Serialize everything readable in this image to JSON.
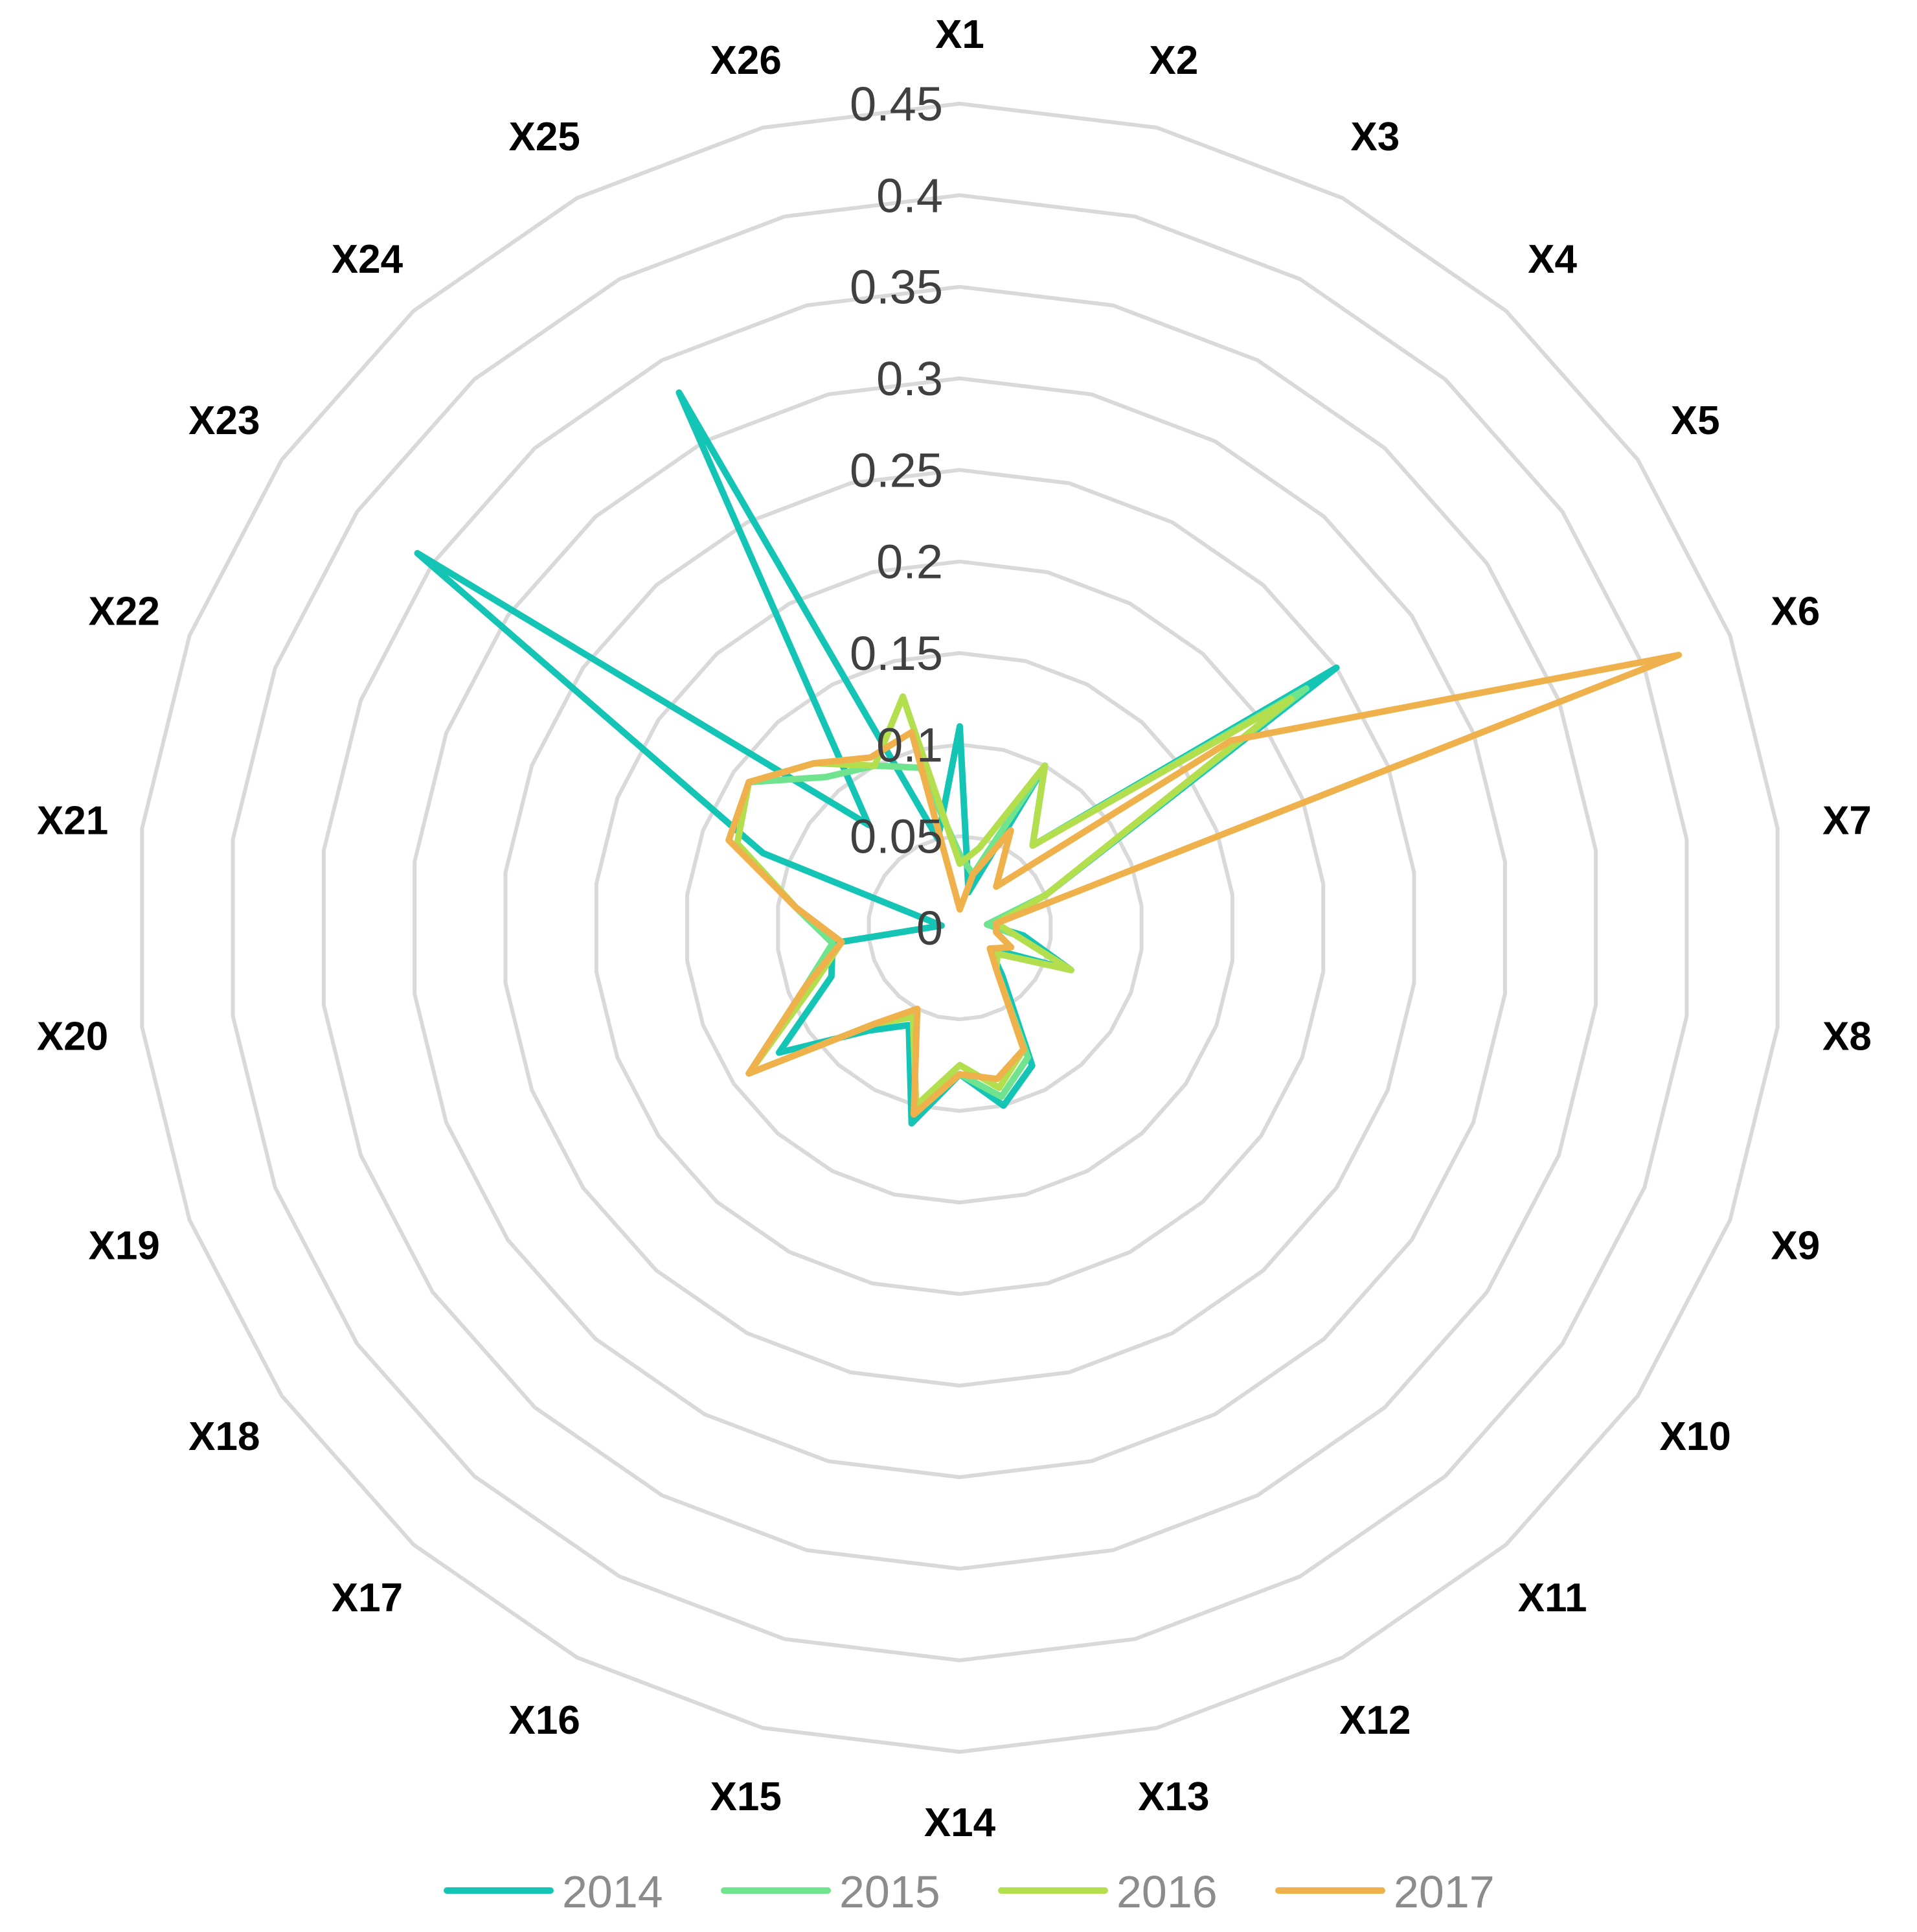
{
  "chart_data": {
    "type": "radar",
    "categories": [
      "X1",
      "X2",
      "X3",
      "X4",
      "X5",
      "X6",
      "X7",
      "X8",
      "X9",
      "X10",
      "X11",
      "X12",
      "X13",
      "X14",
      "X15",
      "X16",
      "X17",
      "X18",
      "X19",
      "X20",
      "X21",
      "X22",
      "X23",
      "X24",
      "X25",
      "X26"
    ],
    "r_ticks": [
      "0",
      "0.05",
      "0.1",
      "0.15",
      "0.2",
      "0.25",
      "0.3",
      "0.35",
      "0.4",
      "0.45"
    ],
    "rlim": [
      0,
      0.45
    ],
    "grid": true,
    "legend_position": "bottom",
    "series": [
      {
        "name": "2014",
        "color": "#14c4b4",
        "values": [
          0.11,
          0.02,
          0.1,
          0.06,
          0.25,
          0.05,
          0.015,
          0.035,
          0.065,
          0.02,
          0.035,
          0.085,
          0.1,
          0.08,
          0.11,
          0.06,
          0.075,
          0.12,
          0.075,
          0.07,
          0.01,
          0.115,
          0.36,
          0.075,
          0.33,
          0.05
        ]
      },
      {
        "name": "2015",
        "color": "#6fe38e",
        "values": [
          0.04,
          0.03,
          0.1,
          0.06,
          0.23,
          0.05,
          0.015,
          0.03,
          0.065,
          0.025,
          0.03,
          0.08,
          0.095,
          0.08,
          0.1,
          0.055,
          0.07,
          0.14,
          0.09,
          0.07,
          0.09,
          0.13,
          0.14,
          0.11,
          0.1,
          0.09
        ]
      },
      {
        "name": "2016",
        "color": "#b3df4e",
        "values": [
          0.035,
          0.045,
          0.1,
          0.06,
          0.22,
          0.05,
          0.02,
          0.03,
          0.065,
          0.025,
          0.03,
          0.075,
          0.09,
          0.075,
          0.1,
          0.055,
          0.07,
          0.14,
          0.085,
          0.065,
          0.09,
          0.13,
          0.14,
          0.12,
          0.1,
          0.13
        ]
      },
      {
        "name": "2017",
        "color": "#efb14c",
        "values": [
          0.01,
          0.03,
          0.06,
          0.03,
          0.18,
          0.42,
          0.02,
          0.02,
          0.03,
          0.02,
          0.03,
          0.075,
          0.085,
          0.08,
          0.105,
          0.05,
          0.07,
          0.14,
          0.09,
          0.065,
          0.09,
          0.135,
          0.14,
          0.12,
          0.105,
          0.11
        ]
      }
    ]
  }
}
